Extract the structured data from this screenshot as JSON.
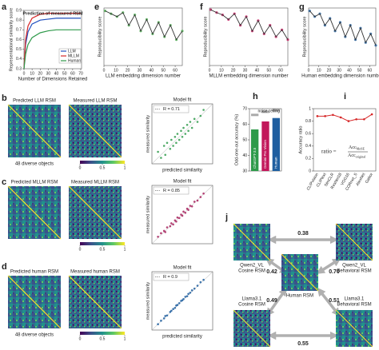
{
  "panel_labels": [
    "a",
    "e",
    "f",
    "g",
    "b",
    "c",
    "d",
    "h",
    "i",
    "j"
  ],
  "chart_data": [
    {
      "type": "line",
      "title": "Prediction of measured RSM",
      "x_label": "Number of Dimensions Retained",
      "y_label": "Representational similarity score",
      "x": [
        0,
        2,
        5,
        10,
        20,
        30,
        40,
        50,
        60,
        70
      ],
      "series": [
        {
          "name": "LLM",
          "color": "#1f4fbf",
          "values": [
            0.3,
            0.55,
            0.68,
            0.76,
            0.8,
            0.81,
            0.82,
            0.82,
            0.82,
            0.82
          ]
        },
        {
          "name": "MLLM",
          "color": "#d62728",
          "values": [
            0.3,
            0.6,
            0.74,
            0.82,
            0.86,
            0.87,
            0.87,
            0.87,
            0.87,
            0.87
          ]
        },
        {
          "name": "Human",
          "color": "#2e9a4a",
          "values": [
            0.3,
            0.45,
            0.55,
            0.62,
            0.67,
            0.69,
            0.7,
            0.7,
            0.7,
            0.7
          ]
        }
      ],
      "xlim": [
        0,
        71
      ],
      "xticks": [
        0,
        10,
        20,
        30,
        40,
        50,
        60,
        70
      ],
      "ylim": [
        0.3,
        0.9
      ],
      "yticks": [
        0.3,
        0.4,
        0.5,
        0.6,
        0.7,
        0.8,
        0.9
      ],
      "legend": "lower right"
    },
    {
      "type": "line",
      "y_label": "Reproducibility score",
      "x_label": "LLM embedding dimension number",
      "x": [
        1,
        6,
        11,
        16,
        21,
        26,
        31,
        36,
        41,
        46,
        51,
        56,
        61,
        66
      ],
      "values": [
        0.95,
        0.9,
        0.85,
        0.92,
        0.7,
        0.88,
        0.6,
        0.8,
        0.55,
        0.75,
        0.5,
        0.7,
        0.45,
        0.6
      ],
      "color": "#333333",
      "point_color": "#4caf50",
      "xlim": [
        0,
        66
      ],
      "xticks": [
        0,
        10,
        20,
        30,
        40,
        50,
        60
      ],
      "ylim": [
        0,
        1
      ]
    },
    {
      "type": "line",
      "y_label": "Reproducibility score",
      "x_label": "MLLM embedding dimension number",
      "x": [
        1,
        6,
        11,
        16,
        21,
        26,
        31,
        36,
        41,
        46,
        51,
        56,
        61,
        66
      ],
      "values": [
        0.97,
        0.92,
        0.88,
        0.8,
        0.9,
        0.7,
        0.85,
        0.6,
        0.78,
        0.55,
        0.7,
        0.5,
        0.62,
        0.45
      ],
      "color": "#333333",
      "point_color": "#c2185b",
      "xlim": [
        0,
        66
      ],
      "xticks": [
        0,
        10,
        20,
        30,
        40,
        50,
        60
      ],
      "ylim": [
        0,
        1
      ]
    },
    {
      "type": "line",
      "y_label": "Reproducibility score",
      "x_label": "Human embedding dimension number",
      "x": [
        1,
        6,
        11,
        16,
        21,
        26,
        31,
        36,
        41,
        46,
        51,
        56,
        61,
        66
      ],
      "values": [
        0.95,
        0.85,
        0.9,
        0.7,
        0.82,
        0.6,
        0.75,
        0.5,
        0.7,
        0.45,
        0.65,
        0.4,
        0.55,
        0.35
      ],
      "color": "#333333",
      "point_color": "#1f5fa0",
      "xlim": [
        0,
        66
      ],
      "xticks": [
        0,
        10,
        20,
        30,
        40,
        50,
        60
      ],
      "ylim": [
        0,
        1
      ]
    },
    {
      "type": "scatter",
      "title": "Model fit",
      "annotation": "R = 0.71",
      "color": "#2e9a4a",
      "x_label": "predicted similarity",
      "y_label": "measured similarity",
      "x": [
        0.1,
        0.15,
        0.2,
        0.22,
        0.25,
        0.3,
        0.32,
        0.35,
        0.38,
        0.4,
        0.42,
        0.45,
        0.48,
        0.5,
        0.52,
        0.55,
        0.58,
        0.6,
        0.63,
        0.66,
        0.7,
        0.75,
        0.8,
        0.85
      ],
      "values": [
        0.2,
        0.1,
        0.3,
        0.15,
        0.35,
        0.25,
        0.4,
        0.3,
        0.45,
        0.35,
        0.5,
        0.4,
        0.55,
        0.45,
        0.6,
        0.5,
        0.65,
        0.55,
        0.7,
        0.6,
        0.75,
        0.7,
        0.8,
        0.9
      ],
      "xlim": [
        0,
        1
      ],
      "ylim": [
        0,
        1
      ]
    },
    {
      "type": "scatter",
      "title": "Model fit",
      "annotation": "R = 0.85",
      "color": "#a8235e",
      "y_label": "measured similarity",
      "x": [
        0.1,
        0.15,
        0.2,
        0.22,
        0.25,
        0.3,
        0.32,
        0.35,
        0.38,
        0.4,
        0.42,
        0.45,
        0.48,
        0.5,
        0.52,
        0.55,
        0.58,
        0.6,
        0.63,
        0.66,
        0.7,
        0.75,
        0.8,
        0.85
      ],
      "values": [
        0.12,
        0.18,
        0.22,
        0.2,
        0.28,
        0.3,
        0.35,
        0.33,
        0.4,
        0.38,
        0.45,
        0.44,
        0.5,
        0.48,
        0.55,
        0.53,
        0.6,
        0.58,
        0.65,
        0.64,
        0.72,
        0.74,
        0.8,
        0.86
      ],
      "xlim": [
        0,
        1
      ],
      "ylim": [
        0,
        1
      ]
    },
    {
      "type": "scatter",
      "title": "Model fit",
      "annotation": "R = 0.9",
      "color": "#1f5fa0",
      "x_label": "predicted similarity",
      "y_label": "measured similarity",
      "x": [
        0.1,
        0.15,
        0.2,
        0.22,
        0.25,
        0.3,
        0.32,
        0.35,
        0.38,
        0.4,
        0.42,
        0.45,
        0.48,
        0.5,
        0.52,
        0.55,
        0.58,
        0.6,
        0.63,
        0.66,
        0.7,
        0.75,
        0.8,
        0.85
      ],
      "values": [
        0.1,
        0.16,
        0.2,
        0.24,
        0.25,
        0.31,
        0.33,
        0.36,
        0.38,
        0.42,
        0.43,
        0.46,
        0.5,
        0.51,
        0.53,
        0.57,
        0.58,
        0.62,
        0.64,
        0.68,
        0.71,
        0.76,
        0.82,
        0.86
      ],
      "xlim": [
        0,
        1
      ],
      "ylim": [
        0,
        1
      ]
    },
    {
      "type": "bar",
      "y_label": "Odd-one-out accuracy (%)",
      "annotation": "noise ceiling",
      "categories": [
        "ChatGPT-3.5",
        "Gemini Pro Vision",
        "Human"
      ],
      "values": [
        56.7,
        61.8,
        64
      ],
      "noise_ceiling": [
        66,
        68,
        69
      ],
      "colors": [
        "#2e9a4a",
        "#c2185b",
        "#1f5fa0"
      ],
      "ylim": [
        30,
        70
      ],
      "yticks": [
        30,
        40,
        50,
        60,
        70
      ]
    },
    {
      "type": "line",
      "y_label": "Accuracy ratio",
      "categories": [
        "CLIPvision",
        "CLIPtext",
        "SimCLR",
        "ResNet18",
        "VGG16",
        "CORnet_S",
        "AlexNet",
        "Gabor"
      ],
      "values": [
        0.88,
        0.88,
        0.9,
        0.86,
        0.8,
        0.83,
        0.83,
        0.91
      ],
      "color": "#d62728",
      "ylim": [
        0,
        1
      ],
      "yticks": [
        0,
        0.2,
        0.4,
        0.6,
        0.8,
        1
      ],
      "formula": {
        "lhs": "ratio =",
        "numerator": "Acc",
        "numerator_sub": "MoSE",
        "denominator": "Acc",
        "denominator_sub": "original"
      }
    }
  ],
  "rsm": [
    {
      "left": "Predicted LLM RSM",
      "right": "Measured LLM RSM",
      "note": "48 diverse objects",
      "colorbar_ticks": [
        0,
        0.5,
        1
      ]
    },
    {
      "left": "Predicted MLLM RSM",
      "right": "Measured MLLM RSM",
      "colorbar_ticks": [
        0,
        0.5,
        1
      ]
    },
    {
      "left": "Predicted human RSM",
      "right": "Measured human RSM",
      "note": "48 diverse objects",
      "colorbar_ticks": [
        0,
        0.5,
        1
      ]
    }
  ],
  "network": {
    "nodes": [
      {
        "name": "Qwen2_VL",
        "kind": "Cosine RSM"
      },
      {
        "name": "Qwen2_VL",
        "kind": "Behavioral RSM"
      },
      {
        "name": "Human RSM"
      },
      {
        "name": "Llama3.1",
        "kind": "Cosine RSM"
      },
      {
        "name": "Llama3.1",
        "kind": "Behavioral RSM"
      }
    ],
    "edges": [
      "0.38",
      "0.42",
      "0.70",
      "0.49",
      "0.51",
      "0.55"
    ]
  }
}
